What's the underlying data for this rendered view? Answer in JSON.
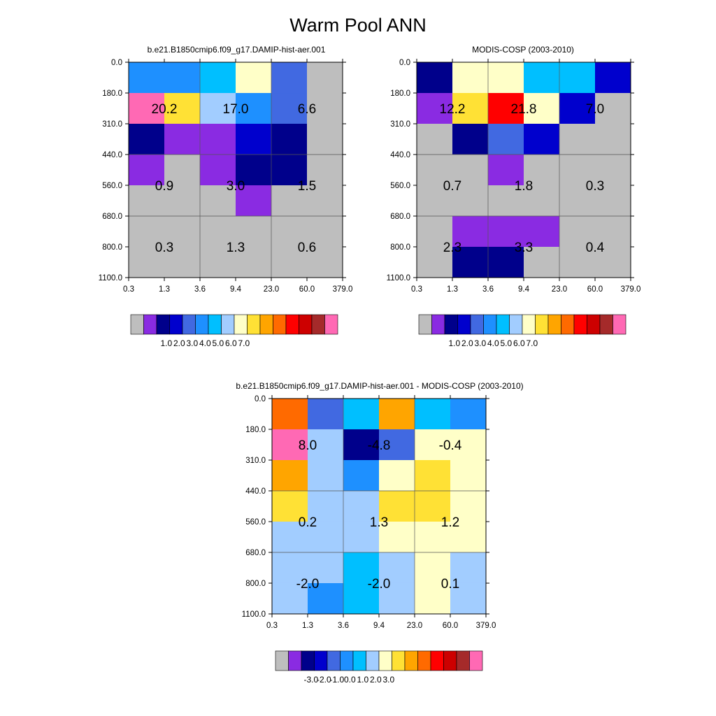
{
  "figure_title": "Warm Pool ANN",
  "chart_data": [
    {
      "type": "heatmap",
      "title": "b.e21.B1850cmip6.f09_g17.DAMIP-hist-aer.001",
      "x_ticks": [
        "0.3",
        "1.3",
        "3.6",
        "9.4",
        "23.0",
        "60.0",
        "379.0"
      ],
      "y_ticks": [
        "0.0",
        "180.0",
        "310.0",
        "440.0",
        "560.0",
        "680.0",
        "800.0",
        "1100.0"
      ],
      "cell_colors": [
        [
          "#1e90ff",
          "#1e90ff",
          "#00bfff",
          "#ffffc8",
          "#4169e1",
          "#bebebe"
        ],
        [
          "#ff69b4",
          "#ffe135",
          "#a2cdff",
          "#1e90ff",
          "#4169e1",
          "#bebebe"
        ],
        [
          "#00008b",
          "#8a2be2",
          "#8a2be2",
          "#0000cd",
          "#00008b",
          "#bebebe"
        ],
        [
          "#8a2be2",
          "#bebebe",
          "#8a2be2",
          "#00008b",
          "#00008b",
          "#bebebe"
        ],
        [
          "#bebebe",
          "#bebebe",
          "#bebebe",
          "#8a2be2",
          "#bebebe",
          "#bebebe"
        ],
        [
          "#bebebe",
          "#bebebe",
          "#bebebe",
          "#bebebe",
          "#bebebe",
          "#bebebe"
        ],
        [
          "#bebebe",
          "#bebebe",
          "#bebebe",
          "#bebebe",
          "#bebebe",
          "#bebebe"
        ]
      ],
      "block_values": [
        [
          "20.2",
          "17.0",
          "6.6"
        ],
        [
          "0.9",
          "3.0",
          "1.5"
        ],
        [
          "0.3",
          "1.3",
          "0.6"
        ]
      ],
      "colorbar": {
        "colors": [
          "#bebebe",
          "#8a2be2",
          "#00008b",
          "#0000cd",
          "#4169e1",
          "#1e90ff",
          "#00bfff",
          "#a2cdff",
          "#ffffc8",
          "#ffe135",
          "#ffa500",
          "#ff6a00",
          "#ff0000",
          "#cd0000",
          "#a52a2a",
          "#ff69b4"
        ],
        "labels": [
          "1.0",
          "2.0",
          "3.0",
          "4.0",
          "5.0",
          "6.0",
          "7.0"
        ]
      }
    },
    {
      "type": "heatmap",
      "title": "MODIS-COSP (2003-2010)",
      "x_ticks": [
        "0.3",
        "1.3",
        "3.6",
        "9.4",
        "23.0",
        "60.0",
        "379.0"
      ],
      "y_ticks": [
        "0.0",
        "180.0",
        "310.0",
        "440.0",
        "560.0",
        "680.0",
        "800.0",
        "1100.0"
      ],
      "cell_colors": [
        [
          "#00008b",
          "#ffffc8",
          "#ffffc8",
          "#00bfff",
          "#00bfff",
          "#0000cd"
        ],
        [
          "#8a2be2",
          "#ffe135",
          "#ff0000",
          "#ffffc8",
          "#0000cd",
          "#bebebe"
        ],
        [
          "#bebebe",
          "#00008b",
          "#4169e1",
          "#0000cd",
          "#bebebe",
          "#bebebe"
        ],
        [
          "#bebebe",
          "#bebebe",
          "#8a2be2",
          "#bebebe",
          "#bebebe",
          "#bebebe"
        ],
        [
          "#bebebe",
          "#bebebe",
          "#bebebe",
          "#bebebe",
          "#bebebe",
          "#bebebe"
        ],
        [
          "#bebebe",
          "#8a2be2",
          "#8a2be2",
          "#8a2be2",
          "#bebebe",
          "#bebebe"
        ],
        [
          "#bebebe",
          "#00008b",
          "#00008b",
          "#bebebe",
          "#bebebe",
          "#bebebe"
        ]
      ],
      "block_values": [
        [
          "12.2",
          "21.8",
          "7.0"
        ],
        [
          "0.7",
          "1.8",
          "0.3"
        ],
        [
          "2.3",
          "3.3",
          "0.4"
        ]
      ],
      "colorbar": {
        "colors": [
          "#bebebe",
          "#8a2be2",
          "#00008b",
          "#0000cd",
          "#4169e1",
          "#1e90ff",
          "#00bfff",
          "#a2cdff",
          "#ffffc8",
          "#ffe135",
          "#ffa500",
          "#ff6a00",
          "#ff0000",
          "#cd0000",
          "#a52a2a",
          "#ff69b4"
        ],
        "labels": [
          "1.0",
          "2.0",
          "3.0",
          "4.0",
          "5.0",
          "6.0",
          "7.0"
        ]
      }
    },
    {
      "type": "heatmap",
      "title": "b.e21.B1850cmip6.f09_g17.DAMIP-hist-aer.001 - MODIS-COSP (2003-2010)",
      "x_ticks": [
        "0.3",
        "1.3",
        "3.6",
        "9.4",
        "23.0",
        "60.0",
        "379.0"
      ],
      "y_ticks": [
        "0.0",
        "180.0",
        "310.0",
        "440.0",
        "560.0",
        "680.0",
        "800.0",
        "1100.0"
      ],
      "cell_colors": [
        [
          "#ff6a00",
          "#4169e1",
          "#00bfff",
          "#ffa500",
          "#00bfff",
          "#1e90ff"
        ],
        [
          "#ff69b4",
          "#a2cdff",
          "#00008b",
          "#4169e1",
          "#ffffc8",
          "#ffffc8"
        ],
        [
          "#ffa500",
          "#a2cdff",
          "#1e90ff",
          "#ffffc8",
          "#ffe135",
          "#ffffc8"
        ],
        [
          "#ffe135",
          "#a2cdff",
          "#a2cdff",
          "#ffe135",
          "#ffe135",
          "#ffffc8"
        ],
        [
          "#a2cdff",
          "#a2cdff",
          "#a2cdff",
          "#ffffc8",
          "#ffffc8",
          "#ffffc8"
        ],
        [
          "#a2cdff",
          "#a2cdff",
          "#00bfff",
          "#a2cdff",
          "#ffffc8",
          "#a2cdff"
        ],
        [
          "#a2cdff",
          "#1e90ff",
          "#00bfff",
          "#a2cdff",
          "#ffffc8",
          "#a2cdff"
        ]
      ],
      "block_values": [
        [
          "8.0",
          "-4.8",
          "-0.4"
        ],
        [
          "0.2",
          "1.3",
          "1.2"
        ],
        [
          "-2.0",
          "-2.0",
          "0.1"
        ]
      ],
      "colorbar": {
        "colors": [
          "#bebebe",
          "#8a2be2",
          "#00008b",
          "#0000cd",
          "#4169e1",
          "#1e90ff",
          "#00bfff",
          "#a2cdff",
          "#ffffc8",
          "#ffe135",
          "#ffa500",
          "#ff6a00",
          "#ff0000",
          "#cd0000",
          "#a52a2a",
          "#ff69b4"
        ],
        "labels": [
          "-3.0",
          "-2.0",
          "-1.0",
          "0.0",
          "1.0",
          "2.0",
          "3.0"
        ]
      }
    }
  ]
}
